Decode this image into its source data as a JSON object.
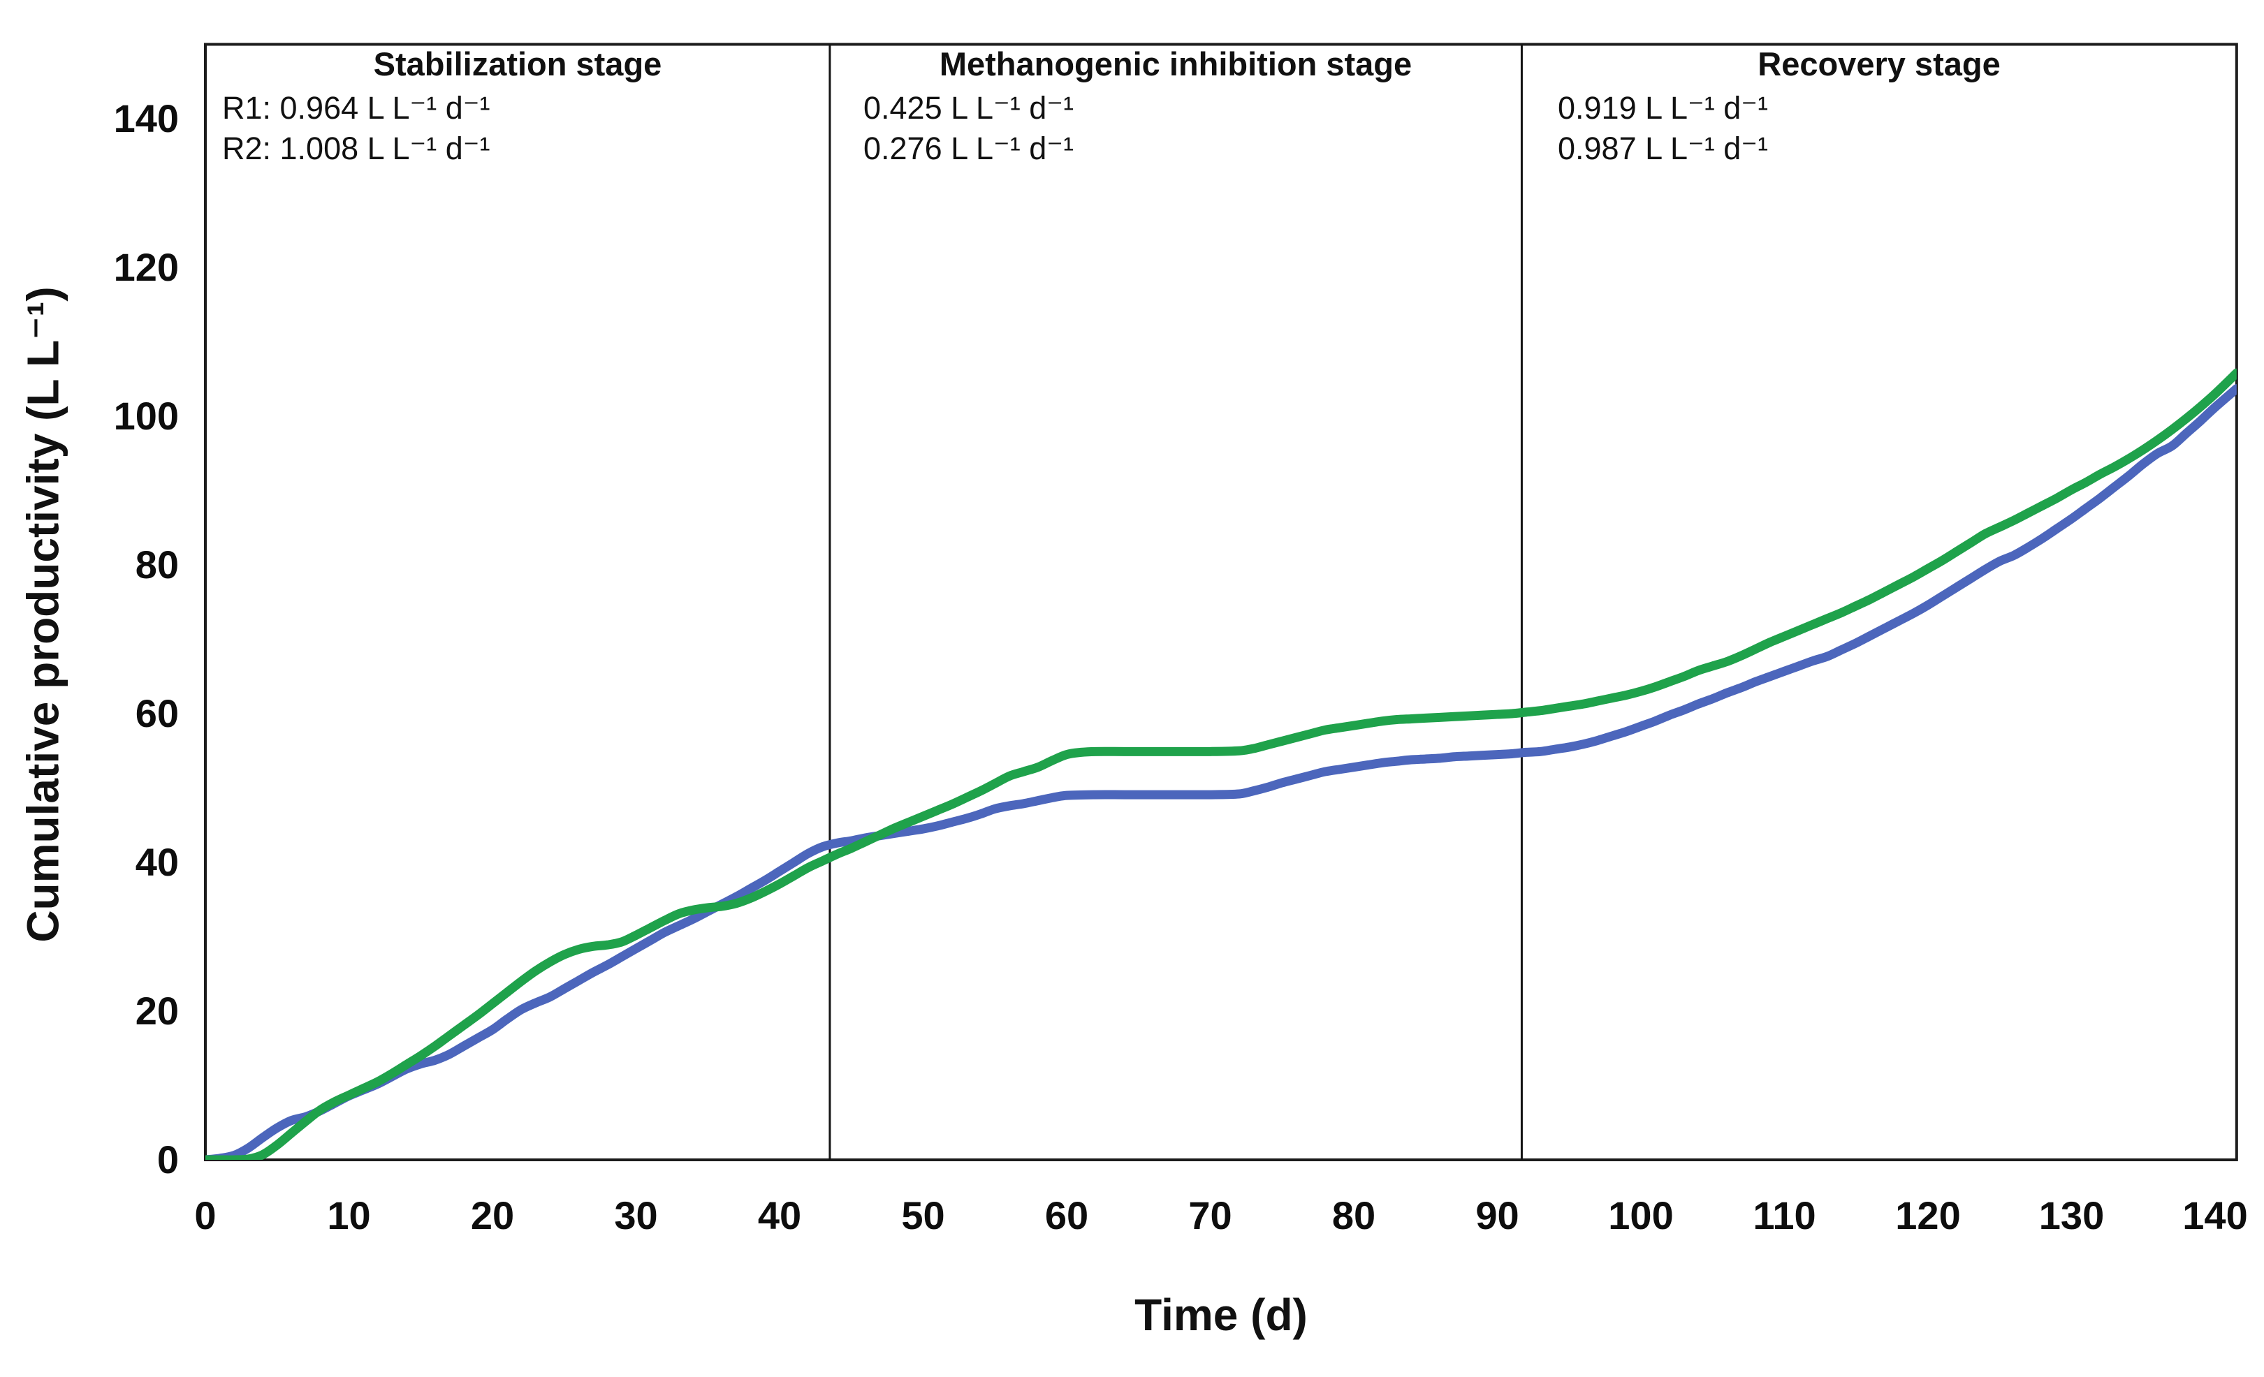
{
  "chart_data": {
    "type": "line",
    "title": "",
    "xlabel": "Time (d)",
    "ylabel": "Cumulative productivity (L L⁻¹)",
    "xlim": [
      0,
      141.5
    ],
    "ylim": [
      0,
      150
    ],
    "x_ticks": [
      0,
      10,
      20,
      30,
      40,
      50,
      60,
      70,
      80,
      90,
      100,
      110,
      120,
      130,
      140
    ],
    "y_ticks": [
      0,
      20,
      40,
      60,
      80,
      100,
      120,
      140
    ],
    "grid": false,
    "legend_position": "none",
    "border_color": "#1c1c1c",
    "stage_dividers_x": [
      43.5,
      91.7
    ],
    "stages": [
      {
        "title": "Stabilization stage",
        "lines": [
          "R1: 0.964 L L⁻¹ d⁻¹",
          "R2: 1.008 L L⁻¹ d⁻¹"
        ]
      },
      {
        "title": "Methanogenic inhibition stage",
        "lines": [
          "0.425 L L⁻¹ d⁻¹",
          "0.276 L L⁻¹ d⁻¹"
        ]
      },
      {
        "title": "Recovery stage",
        "lines": [
          "0.919 L L⁻¹ d⁻¹",
          "0.987 L L⁻¹ d⁻¹"
        ]
      }
    ],
    "series": [
      {
        "name": "R1",
        "color": "#4C66BC",
        "points": [
          [
            0,
            0
          ],
          [
            1,
            0.2
          ],
          [
            2,
            0.6
          ],
          [
            3,
            1.6
          ],
          [
            4,
            3
          ],
          [
            5,
            4.3
          ],
          [
            6,
            5.3
          ],
          [
            7,
            5.8
          ],
          [
            8,
            6.6
          ],
          [
            9,
            7.6
          ],
          [
            10,
            8.6
          ],
          [
            11,
            9.4
          ],
          [
            12,
            10.2
          ],
          [
            13,
            11.2
          ],
          [
            14,
            12.2
          ],
          [
            15,
            12.9
          ],
          [
            16,
            13.4
          ],
          [
            17,
            14.2
          ],
          [
            18,
            15.3
          ],
          [
            19,
            16.4
          ],
          [
            20,
            17.5
          ],
          [
            21,
            18.9
          ],
          [
            22,
            20.2
          ],
          [
            23,
            21.1
          ],
          [
            24,
            21.9
          ],
          [
            25,
            23
          ],
          [
            26,
            24.1
          ],
          [
            27,
            25.2
          ],
          [
            28,
            26.2
          ],
          [
            29,
            27.3
          ],
          [
            30,
            28.4
          ],
          [
            31,
            29.5
          ],
          [
            32,
            30.6
          ],
          [
            33,
            31.5
          ],
          [
            34,
            32.4
          ],
          [
            35,
            33.4
          ],
          [
            36,
            34.4
          ],
          [
            37,
            35.4
          ],
          [
            38,
            36.5
          ],
          [
            39,
            37.6
          ],
          [
            40,
            38.8
          ],
          [
            41,
            40
          ],
          [
            42,
            41.2
          ],
          [
            43,
            42.1
          ],
          [
            44,
            42.6
          ],
          [
            45,
            42.9
          ],
          [
            46,
            43.3
          ],
          [
            47,
            43.6
          ],
          [
            48,
            43.9
          ],
          [
            49,
            44.2
          ],
          [
            50,
            44.5
          ],
          [
            51,
            44.9
          ],
          [
            52,
            45.4
          ],
          [
            53,
            45.9
          ],
          [
            54,
            46.5
          ],
          [
            55,
            47.2
          ],
          [
            56,
            47.6
          ],
          [
            57,
            47.9
          ],
          [
            58,
            48.3
          ],
          [
            59,
            48.7
          ],
          [
            60,
            49
          ],
          [
            62,
            49.1
          ],
          [
            64,
            49.1
          ],
          [
            66,
            49.1
          ],
          [
            68,
            49.1
          ],
          [
            70,
            49.1
          ],
          [
            72,
            49.2
          ],
          [
            73,
            49.6
          ],
          [
            74,
            50.1
          ],
          [
            75,
            50.7
          ],
          [
            76,
            51.2
          ],
          [
            77,
            51.7
          ],
          [
            78,
            52.2
          ],
          [
            79,
            52.5
          ],
          [
            80,
            52.8
          ],
          [
            81,
            53.1
          ],
          [
            82,
            53.4
          ],
          [
            83,
            53.6
          ],
          [
            84,
            53.8
          ],
          [
            85,
            53.9
          ],
          [
            86,
            54
          ],
          [
            87,
            54.2
          ],
          [
            88,
            54.3
          ],
          [
            89,
            54.4
          ],
          [
            90,
            54.5
          ],
          [
            91,
            54.6
          ],
          [
            92,
            54.8
          ],
          [
            93,
            54.9
          ],
          [
            94,
            55.2
          ],
          [
            95,
            55.5
          ],
          [
            96,
            55.9
          ],
          [
            97,
            56.4
          ],
          [
            98,
            57
          ],
          [
            99,
            57.6
          ],
          [
            100,
            58.3
          ],
          [
            101,
            59
          ],
          [
            102,
            59.8
          ],
          [
            103,
            60.5
          ],
          [
            104,
            61.3
          ],
          [
            105,
            62
          ],
          [
            106,
            62.8
          ],
          [
            107,
            63.5
          ],
          [
            108,
            64.3
          ],
          [
            109,
            65
          ],
          [
            110,
            65.7
          ],
          [
            111,
            66.4
          ],
          [
            112,
            67.1
          ],
          [
            113,
            67.7
          ],
          [
            114,
            68.6
          ],
          [
            115,
            69.5
          ],
          [
            116,
            70.5
          ],
          [
            117,
            71.5
          ],
          [
            118,
            72.5
          ],
          [
            119,
            73.5
          ],
          [
            120,
            74.6
          ],
          [
            121,
            75.8
          ],
          [
            122,
            77
          ],
          [
            123,
            78.2
          ],
          [
            124,
            79.4
          ],
          [
            125,
            80.5
          ],
          [
            126,
            81.3
          ],
          [
            127,
            82.4
          ],
          [
            128,
            83.6
          ],
          [
            129,
            84.9
          ],
          [
            130,
            86.2
          ],
          [
            131,
            87.6
          ],
          [
            132,
            89
          ],
          [
            133,
            90.5
          ],
          [
            134,
            92
          ],
          [
            135,
            93.6
          ],
          [
            136,
            95
          ],
          [
            137,
            96
          ],
          [
            138,
            97.7
          ],
          [
            139,
            99.4
          ],
          [
            140,
            101.2
          ],
          [
            141.5,
            103.7
          ]
        ]
      },
      {
        "name": "R2",
        "color": "#1FA24B",
        "points": [
          [
            0,
            0
          ],
          [
            1,
            0
          ],
          [
            2,
            0
          ],
          [
            3,
            0.1
          ],
          [
            4,
            0.7
          ],
          [
            5,
            2
          ],
          [
            6,
            3.6
          ],
          [
            7,
            5.2
          ],
          [
            8,
            6.7
          ],
          [
            9,
            7.8
          ],
          [
            10,
            8.7
          ],
          [
            11,
            9.6
          ],
          [
            12,
            10.5
          ],
          [
            13,
            11.6
          ],
          [
            14,
            12.8
          ],
          [
            15,
            14
          ],
          [
            16,
            15.3
          ],
          [
            17,
            16.7
          ],
          [
            18,
            18.1
          ],
          [
            19,
            19.5
          ],
          [
            20,
            21
          ],
          [
            21,
            22.5
          ],
          [
            22,
            24
          ],
          [
            23,
            25.4
          ],
          [
            24,
            26.6
          ],
          [
            25,
            27.6
          ],
          [
            26,
            28.3
          ],
          [
            27,
            28.7
          ],
          [
            28,
            28.9
          ],
          [
            29,
            29.3
          ],
          [
            30,
            30.2
          ],
          [
            31,
            31.2
          ],
          [
            32,
            32.2
          ],
          [
            33,
            33.1
          ],
          [
            34,
            33.6
          ],
          [
            35,
            33.9
          ],
          [
            36,
            34.1
          ],
          [
            37,
            34.5
          ],
          [
            38,
            35.2
          ],
          [
            39,
            36.1
          ],
          [
            40,
            37.1
          ],
          [
            41,
            38.2
          ],
          [
            42,
            39.3
          ],
          [
            43,
            40.2
          ],
          [
            44,
            41.1
          ],
          [
            45,
            41.9
          ],
          [
            46,
            42.8
          ],
          [
            47,
            43.7
          ],
          [
            48,
            44.6
          ],
          [
            49,
            45.4
          ],
          [
            50,
            46.2
          ],
          [
            51,
            47
          ],
          [
            52,
            47.8
          ],
          [
            53,
            48.7
          ],
          [
            54,
            49.6
          ],
          [
            55,
            50.6
          ],
          [
            56,
            51.6
          ],
          [
            57,
            52.2
          ],
          [
            58,
            52.8
          ],
          [
            59,
            53.7
          ],
          [
            60,
            54.5
          ],
          [
            61,
            54.8
          ],
          [
            62,
            54.9
          ],
          [
            64,
            54.9
          ],
          [
            66,
            54.9
          ],
          [
            68,
            54.9
          ],
          [
            70,
            54.9
          ],
          [
            72,
            55
          ],
          [
            73,
            55.3
          ],
          [
            74,
            55.8
          ],
          [
            75,
            56.3
          ],
          [
            76,
            56.8
          ],
          [
            77,
            57.3
          ],
          [
            78,
            57.8
          ],
          [
            79,
            58.1
          ],
          [
            80,
            58.4
          ],
          [
            81,
            58.7
          ],
          [
            82,
            59
          ],
          [
            83,
            59.2
          ],
          [
            84,
            59.3
          ],
          [
            85,
            59.4
          ],
          [
            86,
            59.5
          ],
          [
            87,
            59.6
          ],
          [
            88,
            59.7
          ],
          [
            89,
            59.8
          ],
          [
            90,
            59.9
          ],
          [
            91,
            60
          ],
          [
            92,
            60.2
          ],
          [
            93,
            60.4
          ],
          [
            94,
            60.7
          ],
          [
            95,
            61
          ],
          [
            96,
            61.3
          ],
          [
            97,
            61.7
          ],
          [
            98,
            62.1
          ],
          [
            99,
            62.5
          ],
          [
            100,
            63
          ],
          [
            101,
            63.6
          ],
          [
            102,
            64.3
          ],
          [
            103,
            65
          ],
          [
            104,
            65.8
          ],
          [
            105,
            66.4
          ],
          [
            106,
            67
          ],
          [
            107,
            67.8
          ],
          [
            108,
            68.7
          ],
          [
            109,
            69.6
          ],
          [
            110,
            70.4
          ],
          [
            111,
            71.2
          ],
          [
            112,
            72
          ],
          [
            113,
            72.8
          ],
          [
            114,
            73.6
          ],
          [
            115,
            74.5
          ],
          [
            116,
            75.4
          ],
          [
            117,
            76.4
          ],
          [
            118,
            77.4
          ],
          [
            119,
            78.4
          ],
          [
            120,
            79.5
          ],
          [
            121,
            80.6
          ],
          [
            122,
            81.8
          ],
          [
            123,
            83
          ],
          [
            124,
            84.2
          ],
          [
            125,
            85.1
          ],
          [
            126,
            86
          ],
          [
            127,
            87
          ],
          [
            128,
            88
          ],
          [
            129,
            89
          ],
          [
            130,
            90.1
          ],
          [
            131,
            91.1
          ],
          [
            132,
            92.2
          ],
          [
            133,
            93.2
          ],
          [
            134,
            94.3
          ],
          [
            135,
            95.5
          ],
          [
            136,
            96.8
          ],
          [
            137,
            98.2
          ],
          [
            138,
            99.7
          ],
          [
            139,
            101.3
          ],
          [
            140,
            103
          ],
          [
            141.5,
            105.8
          ]
        ]
      }
    ]
  }
}
